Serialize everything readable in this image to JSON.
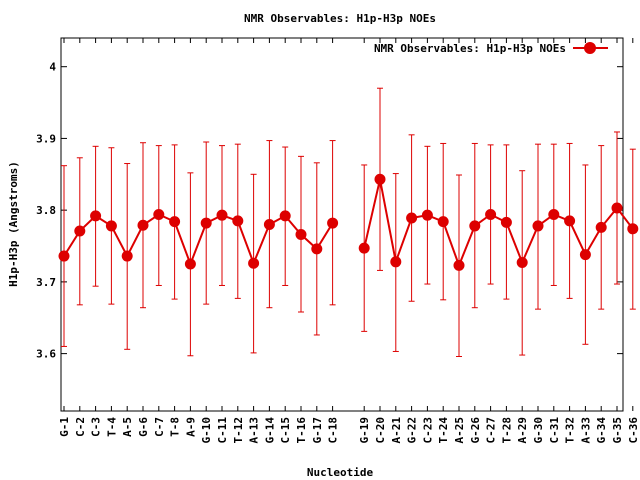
{
  "chart_data": {
    "type": "line",
    "title": "NMR Observables: H1p-H3p NOEs",
    "xlabel": "Nucleotide",
    "ylabel": "H1p-H3p (Angstroms)",
    "ylim": [
      3.52,
      4.04
    ],
    "yticks": [
      3.6,
      3.7,
      3.8,
      3.9,
      4
    ],
    "grid": false,
    "legend_position": "top-right",
    "series": [
      {
        "name": "NMR Observables: H1p-H3p NOEs",
        "color": "#dd0000",
        "marker": "filled-circle",
        "segments": [
          {
            "start": 0,
            "end": 17
          },
          {
            "start": 18,
            "end": 35
          }
        ],
        "points": [
          {
            "label": "G-1",
            "value": 3.736,
            "low": 3.61,
            "high": 3.862
          },
          {
            "label": "C-2",
            "value": 3.771,
            "low": 3.668,
            "high": 3.873
          },
          {
            "label": "C-3",
            "value": 3.792,
            "low": 3.694,
            "high": 3.889
          },
          {
            "label": "T-4",
            "value": 3.778,
            "low": 3.669,
            "high": 3.887
          },
          {
            "label": "A-5",
            "value": 3.736,
            "low": 3.606,
            "high": 3.865
          },
          {
            "label": "G-6",
            "value": 3.779,
            "low": 3.664,
            "high": 3.894
          },
          {
            "label": "C-7",
            "value": 3.794,
            "low": 3.695,
            "high": 3.89
          },
          {
            "label": "T-8",
            "value": 3.784,
            "low": 3.676,
            "high": 3.891
          },
          {
            "label": "A-9",
            "value": 3.725,
            "low": 3.597,
            "high": 3.852
          },
          {
            "label": "G-10",
            "value": 3.782,
            "low": 3.669,
            "high": 3.895
          },
          {
            "label": "C-11",
            "value": 3.793,
            "low": 3.695,
            "high": 3.89
          },
          {
            "label": "T-12",
            "value": 3.785,
            "low": 3.677,
            "high": 3.892
          },
          {
            "label": "A-13",
            "value": 3.726,
            "low": 3.601,
            "high": 3.85
          },
          {
            "label": "G-14",
            "value": 3.78,
            "low": 3.664,
            "high": 3.897
          },
          {
            "label": "C-15",
            "value": 3.792,
            "low": 3.695,
            "high": 3.888
          },
          {
            "label": "T-16",
            "value": 3.766,
            "low": 3.658,
            "high": 3.875
          },
          {
            "label": "G-17",
            "value": 3.746,
            "low": 3.626,
            "high": 3.866
          },
          {
            "label": "C-18",
            "value": 3.782,
            "low": 3.668,
            "high": 3.897
          },
          {
            "label": "G-19",
            "value": 3.747,
            "low": 3.631,
            "high": 3.863
          },
          {
            "label": "C-20",
            "value": 3.843,
            "low": 3.716,
            "high": 3.97
          },
          {
            "label": "A-21",
            "value": 3.728,
            "low": 3.603,
            "high": 3.851
          },
          {
            "label": "G-22",
            "value": 3.789,
            "low": 3.673,
            "high": 3.905
          },
          {
            "label": "C-23",
            "value": 3.793,
            "low": 3.697,
            "high": 3.889
          },
          {
            "label": "T-24",
            "value": 3.784,
            "low": 3.675,
            "high": 3.893
          },
          {
            "label": "A-25",
            "value": 3.723,
            "low": 3.596,
            "high": 3.849
          },
          {
            "label": "G-26",
            "value": 3.778,
            "low": 3.664,
            "high": 3.893
          },
          {
            "label": "C-27",
            "value": 3.794,
            "low": 3.697,
            "high": 3.891
          },
          {
            "label": "T-28",
            "value": 3.783,
            "low": 3.676,
            "high": 3.891
          },
          {
            "label": "A-29",
            "value": 3.727,
            "low": 3.598,
            "high": 3.855
          },
          {
            "label": "G-30",
            "value": 3.778,
            "low": 3.662,
            "high": 3.892
          },
          {
            "label": "C-31",
            "value": 3.794,
            "low": 3.695,
            "high": 3.892
          },
          {
            "label": "T-32",
            "value": 3.785,
            "low": 3.677,
            "high": 3.893
          },
          {
            "label": "A-33",
            "value": 3.738,
            "low": 3.613,
            "high": 3.863
          },
          {
            "label": "G-34",
            "value": 3.776,
            "low": 3.662,
            "high": 3.89
          },
          {
            "label": "G-35",
            "value": 3.803,
            "low": 3.697,
            "high": 3.909
          },
          {
            "label": "C-36",
            "value": 3.774,
            "low": 3.662,
            "high": 3.885
          }
        ]
      }
    ]
  }
}
